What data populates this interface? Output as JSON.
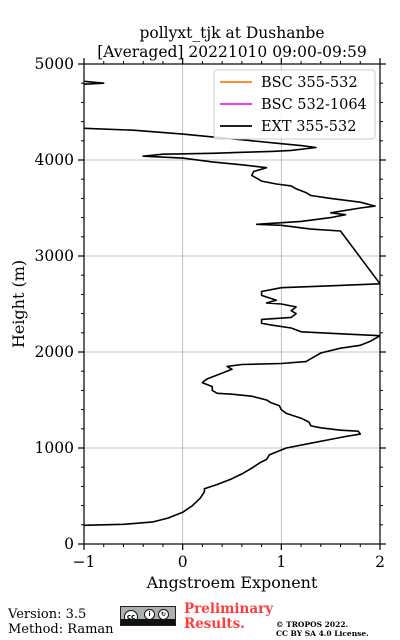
{
  "chart_data": {
    "type": "line",
    "title_line1": "pollyxt_tjk at Dushanbe",
    "title_line2": "[Averaged] 20221010 09:00-09:59",
    "xlabel": "Angstroem Exponent",
    "ylabel": "Height (m)",
    "xlim": [
      -1,
      2
    ],
    "ylim": [
      0,
      5000
    ],
    "x_ticks": [
      -1,
      0,
      1,
      2
    ],
    "y_ticks": [
      0,
      1000,
      2000,
      3000,
      4000,
      5000
    ],
    "x_tick_labels": [
      "−1",
      "0",
      "1",
      "2"
    ],
    "y_tick_labels": [
      "0",
      "1000",
      "2000",
      "3000",
      "4000",
      "5000"
    ],
    "grid": true,
    "legend_position": "top-right",
    "series": [
      {
        "name": "BSC 355-532",
        "color": "#ff7f0e",
        "points": []
      },
      {
        "name": "BSC 532-1064",
        "color": "#e91ee9",
        "points": []
      },
      {
        "name": "EXT 355-532",
        "color": "#000000",
        "points": [
          [
            -1.0,
            195
          ],
          [
            -0.6,
            205
          ],
          [
            -0.3,
            230
          ],
          [
            -0.15,
            270
          ],
          [
            0.0,
            330
          ],
          [
            0.1,
            400
          ],
          [
            0.18,
            480
          ],
          [
            0.22,
            545
          ],
          [
            0.22,
            575
          ],
          [
            0.35,
            620
          ],
          [
            0.5,
            680
          ],
          [
            0.6,
            730
          ],
          [
            0.7,
            790
          ],
          [
            0.78,
            845
          ],
          [
            0.85,
            880
          ],
          [
            0.88,
            930
          ],
          [
            1.05,
            1000
          ],
          [
            1.3,
            1050
          ],
          [
            1.5,
            1090
          ],
          [
            1.65,
            1120
          ],
          [
            1.8,
            1145
          ],
          [
            1.78,
            1175
          ],
          [
            1.6,
            1185
          ],
          [
            1.4,
            1210
          ],
          [
            1.3,
            1230
          ],
          [
            1.28,
            1270
          ],
          [
            1.2,
            1310
          ],
          [
            1.05,
            1360
          ],
          [
            1.0,
            1400
          ],
          [
            0.98,
            1440
          ],
          [
            0.9,
            1470
          ],
          [
            0.85,
            1500
          ],
          [
            0.7,
            1540
          ],
          [
            0.5,
            1560
          ],
          [
            0.35,
            1570
          ],
          [
            0.3,
            1600
          ],
          [
            0.3,
            1640
          ],
          [
            0.25,
            1660
          ],
          [
            0.2,
            1680
          ],
          [
            0.22,
            1700
          ],
          [
            0.25,
            1720
          ],
          [
            0.4,
            1780
          ],
          [
            0.5,
            1820
          ],
          [
            0.45,
            1850
          ],
          [
            0.6,
            1870
          ],
          [
            1.0,
            1880
          ],
          [
            1.25,
            1900
          ],
          [
            1.3,
            1930
          ],
          [
            1.35,
            1960
          ],
          [
            1.4,
            1990
          ],
          [
            1.6,
            2040
          ],
          [
            1.8,
            2070
          ],
          [
            1.9,
            2110
          ],
          [
            2.0,
            2170
          ],
          [
            1.6,
            2190
          ],
          [
            1.2,
            2210
          ],
          [
            1.1,
            2250
          ],
          [
            0.9,
            2280
          ],
          [
            0.8,
            2300
          ],
          [
            0.8,
            2340
          ],
          [
            1.1,
            2360
          ],
          [
            1.15,
            2400
          ],
          [
            1.1,
            2430
          ],
          [
            1.15,
            2470
          ],
          [
            1.0,
            2500
          ],
          [
            0.85,
            2510
          ],
          [
            0.95,
            2540
          ],
          [
            0.8,
            2590
          ],
          [
            0.8,
            2630
          ],
          [
            1.0,
            2670
          ],
          [
            1.5,
            2690
          ],
          [
            2.0,
            2710
          ],
          [
            1.6,
            3260
          ],
          [
            1.3,
            3280
          ],
          [
            1.0,
            3320
          ],
          [
            0.75,
            3330
          ],
          [
            1.2,
            3360
          ],
          [
            1.5,
            3400
          ],
          [
            1.65,
            3430
          ],
          [
            1.5,
            3450
          ],
          [
            1.8,
            3500
          ],
          [
            1.95,
            3520
          ],
          [
            1.8,
            3560
          ],
          [
            1.5,
            3600
          ],
          [
            1.3,
            3630
          ],
          [
            1.25,
            3660
          ],
          [
            1.15,
            3700
          ],
          [
            1.1,
            3730
          ],
          [
            0.95,
            3750
          ],
          [
            0.8,
            3780
          ],
          [
            0.7,
            3840
          ],
          [
            0.72,
            3880
          ],
          [
            0.85,
            3920
          ],
          [
            0.6,
            3950
          ],
          [
            0.3,
            3980
          ],
          [
            0.0,
            4020
          ],
          [
            -0.4,
            4040
          ],
          [
            -0.2,
            4060
          ],
          [
            0.3,
            4070
          ],
          [
            0.6,
            4080
          ],
          [
            0.9,
            4090
          ],
          [
            1.1,
            4100
          ],
          [
            1.35,
            4130
          ],
          [
            1.2,
            4150
          ],
          [
            1.0,
            4170
          ],
          [
            0.6,
            4210
          ],
          [
            0.0,
            4270
          ],
          [
            -0.5,
            4310
          ],
          [
            -1.0,
            4330
          ]
        ]
      },
      {
        "name": "EXT 355-532 (upper)",
        "color": "#000000",
        "points": [
          [
            -1.0,
            4790
          ],
          [
            -0.8,
            4800
          ],
          [
            -1.0,
            4820
          ]
        ]
      }
    ]
  },
  "footer": {
    "version": "Version: 3.5",
    "method": "Method: Raman",
    "preliminary_line1": "Preliminary",
    "preliminary_line2": "Results.",
    "copyright_line1": "© TROPOS 2022.",
    "copyright_line2": "CC BY SA 4.0 License.",
    "license_icon": "cc-by-sa-icon"
  }
}
